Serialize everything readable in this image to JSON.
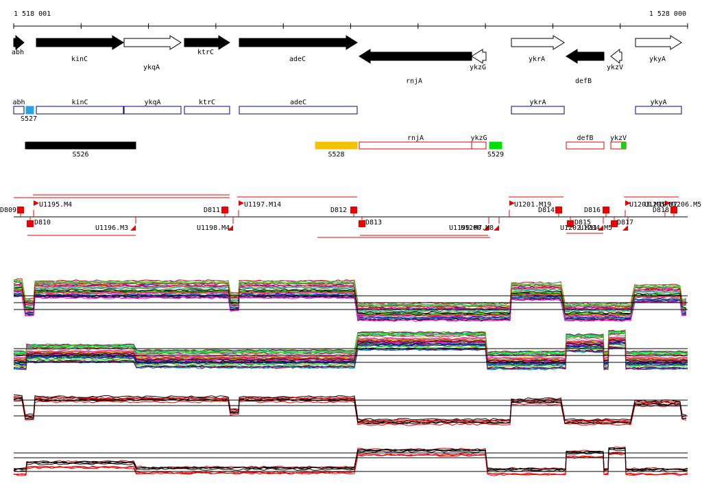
{
  "ruler": {
    "start": "1 518 001",
    "end": "1 528 000"
  },
  "genes": [
    "abh",
    "kinC",
    "ykqA",
    "ktrC",
    "adeC",
    "rnjA",
    "ykzG",
    "ykrA",
    "defB",
    "ykzV",
    "ykyA"
  ],
  "cds_boxes": [
    "abh",
    "kinC",
    "ykqA",
    "ktrC",
    "adeC",
    "ykrA",
    "ykyA",
    "S527"
  ],
  "features": [
    "S526",
    "S528",
    "rnjA",
    "ykzG",
    "S529",
    "defB",
    "ykzV"
  ],
  "segments": [
    "D809",
    "U1195.M4",
    "D810",
    "U1196.M3",
    "D811",
    "U1198.M4",
    "U1197.M14",
    "D812",
    "D813",
    "U1199.M7",
    "U1200.M8",
    "U1201.M19",
    "D814",
    "D815",
    "U1202.M11",
    "U1204.M5",
    "D816",
    "D817",
    "U1203.M10",
    "U1205.M7",
    "D818",
    "U1206.M5"
  ]
}
